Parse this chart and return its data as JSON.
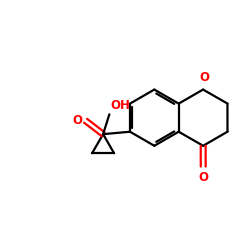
{
  "bg_color": "#ffffff",
  "bond_color": "#000000",
  "oxygen_color": "#ff0000",
  "lw": 1.6,
  "fontsize": 8.5,
  "fig_width": 2.5,
  "fig_height": 2.5,
  "dpi": 100,
  "xlim": [
    0,
    10
  ],
  "ylim": [
    0,
    10
  ]
}
